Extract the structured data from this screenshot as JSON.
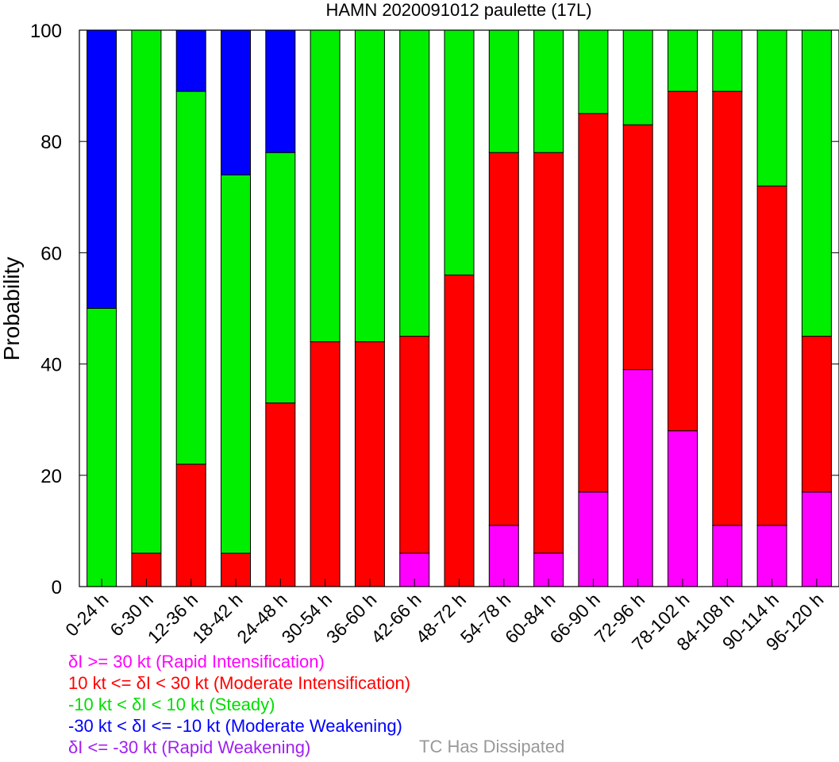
{
  "chart_data": {
    "type": "bar",
    "stacked": true,
    "title": "HAMN 2020091012 paulette (17L)",
    "xlabel": "",
    "ylabel": "Probability",
    "ylim": [
      0,
      100
    ],
    "yticks": [
      "0",
      "20",
      "40",
      "60",
      "80",
      "100"
    ],
    "categories": [
      "0-24 h",
      "6-30 h",
      "12-36 h",
      "18-42 h",
      "24-48 h",
      "30-54 h",
      "36-60 h",
      "42-66 h",
      "48-72 h",
      "54-78 h",
      "60-84 h",
      "66-90 h",
      "72-96 h",
      "78-102 h",
      "84-108 h",
      "90-114 h",
      "96-120 h"
    ],
    "series": [
      {
        "name": "δI >= 30 kt (Rapid Intensification)",
        "color": "#ff00ff",
        "values": [
          0,
          0,
          0,
          0,
          0,
          0,
          0,
          6,
          0,
          11,
          6,
          17,
          39,
          28,
          11,
          11,
          17
        ]
      },
      {
        "name": "10 kt <= δI < 30 kt (Moderate Intensification)",
        "color": "#ff0000",
        "values": [
          0,
          6,
          22,
          6,
          33,
          44,
          44,
          39,
          56,
          67,
          72,
          68,
          44,
          61,
          78,
          61,
          28
        ]
      },
      {
        "name": "-10 kt < δI < 10 kt (Steady)",
        "color": "#00ee00",
        "values": [
          50,
          94,
          67,
          68,
          45,
          56,
          56,
          55,
          44,
          22,
          22,
          15,
          17,
          11,
          11,
          28,
          55
        ]
      },
      {
        "name": "-30 kt < δI <= -10 kt (Moderate Weakening)",
        "color": "#0000ff",
        "values": [
          50,
          0,
          11,
          26,
          22,
          0,
          0,
          0,
          0,
          0,
          0,
          0,
          0,
          0,
          0,
          0,
          0
        ]
      },
      {
        "name": "δI <= -30 kt (Rapid Weakening)",
        "color": "#a020f0",
        "values": [
          0,
          0,
          0,
          0,
          0,
          0,
          0,
          0,
          0,
          0,
          0,
          0,
          0,
          0,
          0,
          0,
          0
        ]
      }
    ],
    "grid": false,
    "legend_position": "bottom-left"
  },
  "legend": {
    "ri": {
      "text": "δI >= 30 kt (Rapid Intensification)",
      "color": "#ff00ff"
    },
    "mi": {
      "text": "10 kt <= δI < 30 kt (Moderate Intensification)",
      "color": "#ff0000"
    },
    "st": {
      "text": "-10 kt < δI < 10 kt (Steady)",
      "color": "#00ee00"
    },
    "mw": {
      "text": "-30 kt < δI <= -10 kt (Moderate Weakening)",
      "color": "#0000ff"
    },
    "rw": {
      "text": "δI <= -30 kt (Rapid Weakening)",
      "color": "#a020f0"
    },
    "dissipated": {
      "text": "TC Has Dissipated",
      "color": "#999999"
    }
  }
}
